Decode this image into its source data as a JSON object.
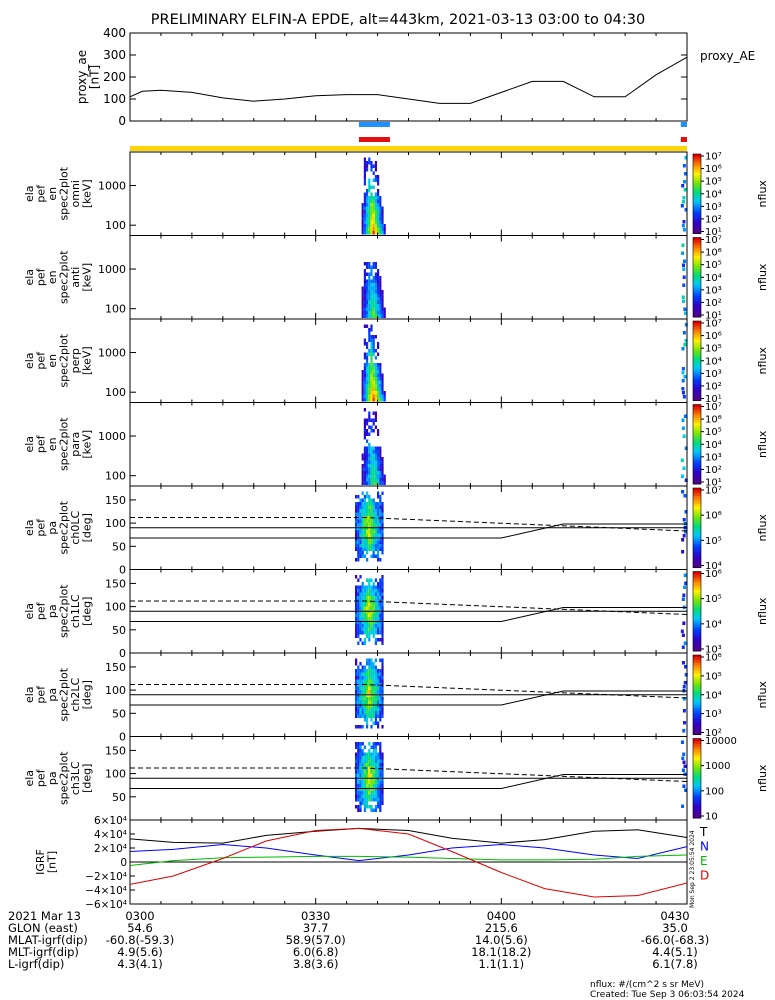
{
  "title": "PRELIMINARY ELFIN-A EPDE, alt=443km, 2021-03-13 03:00 to 04:30",
  "colors": {
    "bar_blue": "#1e90ff",
    "bar_red": "#e01010",
    "bar_yellow": "#ffd400",
    "igrf_T": "#000000",
    "igrf_N": "#0000ff",
    "igrf_E": "#00bb00",
    "igrf_D": "#dd0000"
  },
  "chart_data": [
    {
      "type": "line",
      "panel": "proxy_ae",
      "ylabel": [
        "proxy_ae",
        "[nT]"
      ],
      "legend": "proxy_AE",
      "ylim": [
        0,
        400
      ],
      "yticks": [
        "400",
        "300",
        "200",
        "100",
        "0"
      ],
      "x": [
        "03:00",
        "03:02",
        "03:05",
        "03:10",
        "03:15",
        "03:20",
        "03:25",
        "03:30",
        "03:35",
        "03:40",
        "03:45",
        "03:50",
        "03:55",
        "04:00",
        "04:05",
        "04:10",
        "04:15",
        "04:20",
        "04:25",
        "04:30"
      ],
      "values": [
        110,
        135,
        140,
        130,
        105,
        90,
        100,
        115,
        120,
        120,
        100,
        80,
        80,
        130,
        180,
        180,
        110,
        110,
        210,
        290
      ]
    },
    {
      "type": "bar",
      "panel": "indicator_bars",
      "series": [
        {
          "name": "blue",
          "segments": [
            [
              "03:37",
              "03:42"
            ],
            [
              "04:29",
              "04:30"
            ]
          ]
        },
        {
          "name": "red",
          "segments": [
            [
              "03:37",
              "03:42"
            ],
            [
              "04:29",
              "04:30"
            ]
          ]
        },
        {
          "name": "yellow",
          "segments": [
            [
              "03:00",
              "04:30"
            ]
          ]
        }
      ]
    },
    {
      "type": "heatmap",
      "panel": "omni",
      "ylabel": [
        "ela",
        "pef",
        "en",
        "spec2plot",
        "omni",
        "[keV]"
      ],
      "yticks": [
        "1000",
        "100"
      ],
      "colorbar": {
        "label": "nflux",
        "ticks": [
          "10¹",
          "10²",
          "10³",
          "10⁴",
          "10⁵",
          "10⁶",
          "10⁷"
        ]
      }
    },
    {
      "type": "heatmap",
      "panel": "anti",
      "ylabel": [
        "ela",
        "pef",
        "en",
        "spec2plot",
        "anti",
        "[keV]"
      ],
      "yticks": [
        "1000",
        "100"
      ],
      "colorbar": {
        "label": "nflux",
        "ticks": [
          "10¹",
          "10²",
          "10³",
          "10⁴",
          "10⁵",
          "10⁶",
          "10⁷"
        ]
      }
    },
    {
      "type": "heatmap",
      "panel": "perp",
      "ylabel": [
        "ela",
        "pef",
        "en",
        "spec2plot",
        "perp",
        "[keV]"
      ],
      "yticks": [
        "1000",
        "100"
      ],
      "colorbar": {
        "label": "nflux",
        "ticks": [
          "10¹",
          "10²",
          "10³",
          "10⁴",
          "10⁵",
          "10⁶",
          "10⁷"
        ]
      }
    },
    {
      "type": "heatmap",
      "panel": "para",
      "ylabel": [
        "ela",
        "pef",
        "en",
        "spec2plot",
        "para",
        "[keV]"
      ],
      "yticks": [
        "1000",
        "100"
      ],
      "colorbar": {
        "label": "nflux",
        "ticks": [
          "10¹",
          "10²",
          "10³",
          "10⁴",
          "10⁵",
          "10⁶",
          "10⁷"
        ]
      }
    },
    {
      "type": "heatmap",
      "panel": "ch0LC",
      "ylabel": [
        "ela",
        "pef",
        "pa",
        "spec2plot",
        "ch0LC",
        "[deg]"
      ],
      "yticks": [
        "150",
        "100",
        "50",
        "0"
      ],
      "ylim": [
        0,
        180
      ],
      "colorbar": {
        "label": "nflux",
        "ticks": [
          "10⁴",
          "10⁵",
          "10⁶",
          "10⁷"
        ]
      }
    },
    {
      "type": "heatmap",
      "panel": "ch1LC",
      "ylabel": [
        "ela",
        "pef",
        "pa",
        "spec2plot",
        "ch1LC",
        "[deg]"
      ],
      "yticks": [
        "150",
        "100",
        "50",
        "0"
      ],
      "ylim": [
        0,
        180
      ],
      "colorbar": {
        "label": "nflux",
        "ticks": [
          "10³",
          "10⁴",
          "10⁵",
          "10⁶"
        ]
      }
    },
    {
      "type": "heatmap",
      "panel": "ch2LC",
      "ylabel": [
        "ela",
        "pef",
        "pa",
        "spec2plot",
        "ch2LC",
        "[deg]"
      ],
      "yticks": [
        "150",
        "100",
        "50",
        "0"
      ],
      "ylim": [
        0,
        180
      ],
      "colorbar": {
        "label": "nflux",
        "ticks": [
          "10²",
          "10³",
          "10⁴",
          "10⁵",
          "10⁶"
        ]
      }
    },
    {
      "type": "heatmap",
      "panel": "ch3LC",
      "ylabel": [
        "ela",
        "pef",
        "pa",
        "spec2plot",
        "ch3LC",
        "[deg]"
      ],
      "yticks": [
        "150",
        "100",
        "50"
      ],
      "ylim": [
        0,
        180
      ],
      "colorbar": {
        "label": "nflux",
        "ticks": [
          "10",
          "100",
          "1000",
          "10000"
        ]
      }
    },
    {
      "type": "line",
      "panel": "IGRF",
      "ylabel": [
        "IGRF",
        "[nT]"
      ],
      "ylim": [
        -60000,
        60000
      ],
      "yticks": [
        "6×10⁴",
        "4×10⁴",
        "2×10⁴",
        "0",
        "−2×10⁴",
        "−4×10⁴",
        "−6×10⁴"
      ],
      "x": [
        "03:00",
        "03:07",
        "03:15",
        "03:22",
        "03:30",
        "03:37",
        "03:45",
        "03:52",
        "04:00",
        "04:07",
        "04:15",
        "04:22",
        "04:30"
      ],
      "series": [
        {
          "name": "T",
          "values": [
            33000,
            28000,
            27000,
            38000,
            44000,
            48000,
            45000,
            34000,
            27000,
            32000,
            44000,
            46000,
            35000
          ]
        },
        {
          "name": "N",
          "values": [
            15000,
            18000,
            25000,
            20000,
            10000,
            2000,
            10000,
            20000,
            25000,
            20000,
            10000,
            5000,
            22000
          ]
        },
        {
          "name": "E",
          "values": [
            -5000,
            2000,
            6000,
            7000,
            8000,
            8000,
            7000,
            5000,
            3000,
            3000,
            4000,
            8000,
            10000
          ]
        },
        {
          "name": "D",
          "values": [
            -32000,
            -20000,
            5000,
            30000,
            45000,
            48000,
            40000,
            15000,
            -15000,
            -38000,
            -50000,
            -48000,
            -30000
          ]
        }
      ],
      "legend": [
        "T",
        "N",
        "E",
        "D"
      ]
    }
  ],
  "side_text": "Mon Sep  2 23:05:54 2024",
  "footer": {
    "rows": [
      {
        "label": "2021 Mar 13",
        "values": [
          "0300",
          "0330",
          "0400",
          "0430"
        ]
      },
      {
        "label": "GLON (east)",
        "values": [
          "54.6",
          "37.7",
          "215.6",
          "35.0"
        ]
      },
      {
        "label": "MLAT-igrf(dip)",
        "values": [
          "-60.8(-59.3)",
          "58.9(57.0)",
          "14.0(5.6)",
          "-66.0(-68.3)"
        ]
      },
      {
        "label": "MLT-igrf(dip)",
        "values": [
          "4.9(5.6)",
          "6.0(6.8)",
          "18.1(18.2)",
          "4.4(5.1)"
        ]
      },
      {
        "label": "L-igrf(dip)",
        "values": [
          "4.3(4.1)",
          "3.8(3.6)",
          "1.1(1.1)",
          "6.1(7.8)"
        ]
      }
    ],
    "note1": "nflux: #/(cm^2 s sr MeV)",
    "note2": "Created: Tue Sep  3 06:03:54 2024"
  }
}
